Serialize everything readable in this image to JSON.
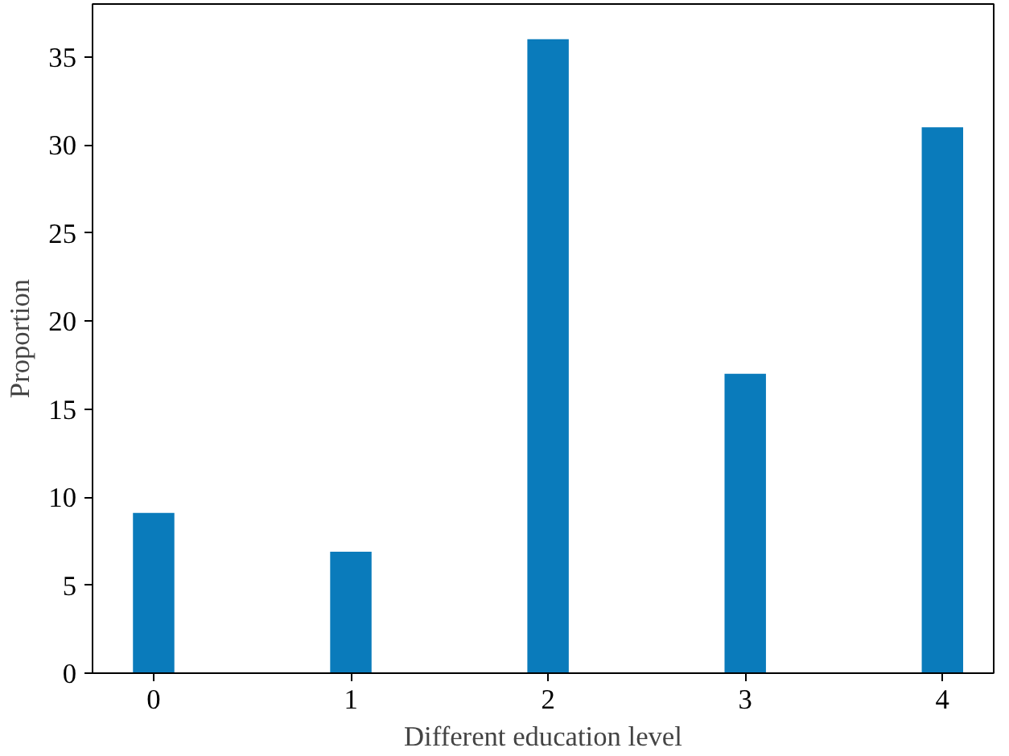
{
  "chart_data": {
    "type": "bar",
    "xlabel": "Different education level",
    "ylabel": "Proportion",
    "categories": [
      "0",
      "1",
      "2",
      "3",
      "4"
    ],
    "values": [
      9.1,
      6.9,
      36,
      17,
      31
    ],
    "color": "#0a7bbb",
    "ylim": [
      0,
      38
    ],
    "yticks": [
      0,
      5,
      10,
      15,
      20,
      25,
      30,
      35
    ],
    "grid": false
  }
}
